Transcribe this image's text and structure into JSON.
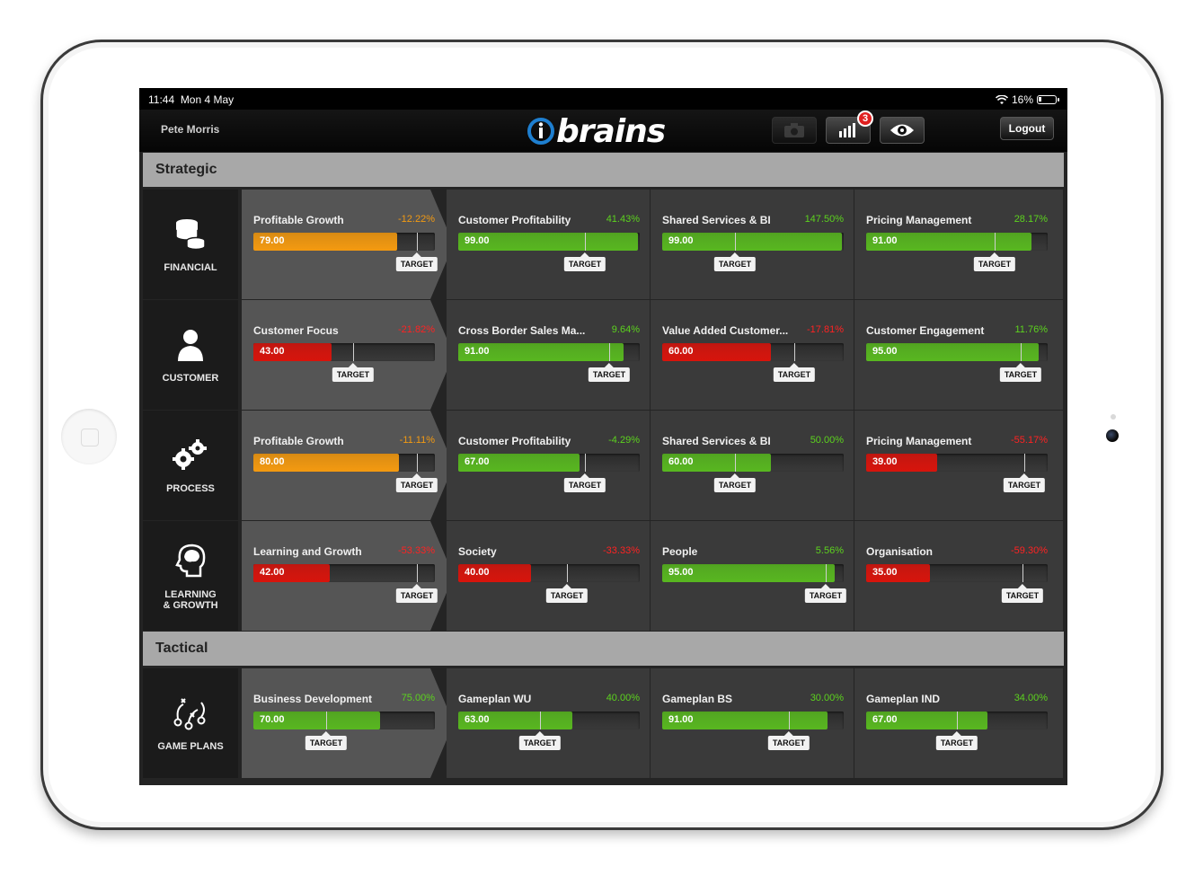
{
  "status": {
    "time": "11:44",
    "date": "Mon 4 May",
    "battery": "16%"
  },
  "header": {
    "user": "Pete Morris",
    "logo_text": "brains",
    "badge": "3",
    "logout": "Logout"
  },
  "colors": {
    "green": "#58b720",
    "red": "#d8140c",
    "orange": "#f49a10",
    "pct_green": "#5cd21e",
    "pct_red": "#ff2222",
    "pct_orange": "#f39a12"
  },
  "sections": [
    {
      "title": "Strategic",
      "rows": [
        {
          "category": "FINANCIAL",
          "icon": "database-icon",
          "tiles": [
            {
              "name": "Profitable Growth",
              "pct": "-12.22%",
              "value": "79.00",
              "color": "orange",
              "fill": 0.79,
              "target": 0.9,
              "target_label": "TARGET"
            },
            {
              "name": "Customer Profitability",
              "pct": "41.43%",
              "value": "99.00",
              "color": "green",
              "fill": 0.99,
              "target": 0.7,
              "target_label": "TARGET"
            },
            {
              "name": "Shared Services & BI",
              "pct": "147.50%",
              "value": "99.00",
              "color": "green",
              "fill": 0.99,
              "target": 0.4,
              "target_label": "TARGET"
            },
            {
              "name": "Pricing Management",
              "pct": "28.17%",
              "value": "91.00",
              "color": "green",
              "fill": 0.91,
              "target": 0.71,
              "target_label": "TARGET"
            }
          ]
        },
        {
          "category": "CUSTOMER",
          "icon": "person-icon",
          "tiles": [
            {
              "name": "Customer Focus",
              "pct": "-21.82%",
              "value": "43.00",
              "color": "red",
              "fill": 0.43,
              "target": 0.55,
              "target_label": "TARGET"
            },
            {
              "name": "Cross Border Sales Ma...",
              "pct": "9.64%",
              "value": "91.00",
              "color": "green",
              "fill": 0.91,
              "target": 0.83,
              "target_label": "TARGET"
            },
            {
              "name": "Value Added Customer...",
              "pct": "-17.81%",
              "value": "60.00",
              "color": "red",
              "fill": 0.6,
              "target": 0.73,
              "target_label": "TARGET"
            },
            {
              "name": "Customer Engagement",
              "pct": "11.76%",
              "value": "95.00",
              "color": "green",
              "fill": 0.95,
              "target": 0.85,
              "target_label": "TARGET"
            }
          ]
        },
        {
          "category": "PROCESS",
          "icon": "gears-icon",
          "tiles": [
            {
              "name": "Profitable Growth",
              "pct": "-11.11%",
              "value": "80.00",
              "color": "orange",
              "fill": 0.8,
              "target": 0.9,
              "target_label": "TARGET"
            },
            {
              "name": "Customer Profitability",
              "pct": "-4.29%",
              "value": "67.00",
              "color": "green",
              "fill": 0.67,
              "target": 0.7,
              "target_label": "TARGET"
            },
            {
              "name": "Shared Services & BI",
              "pct": "50.00%",
              "value": "60.00",
              "color": "green",
              "fill": 0.6,
              "target": 0.4,
              "target_label": "TARGET"
            },
            {
              "name": "Pricing Management",
              "pct": "-55.17%",
              "value": "39.00",
              "color": "red",
              "fill": 0.39,
              "target": 0.87,
              "target_label": "TARGET"
            }
          ]
        },
        {
          "category": "LEARNING\n& GROWTH",
          "icon": "head-icon",
          "tiles": [
            {
              "name": "Learning and Growth",
              "pct": "-53.33%",
              "value": "42.00",
              "color": "red",
              "fill": 0.42,
              "target": 0.9,
              "target_label": "TARGET"
            },
            {
              "name": "Society",
              "pct": "-33.33%",
              "value": "40.00",
              "color": "red",
              "fill": 0.4,
              "target": 0.6,
              "target_label": "TARGET"
            },
            {
              "name": "People",
              "pct": "5.56%",
              "value": "95.00",
              "color": "green",
              "fill": 0.95,
              "target": 0.9,
              "target_label": "TARGET"
            },
            {
              "name": "Organisation",
              "pct": "-59.30%",
              "value": "35.00",
              "color": "red",
              "fill": 0.35,
              "target": 0.86,
              "target_label": "TARGET"
            }
          ]
        }
      ]
    },
    {
      "title": "Tactical",
      "rows": [
        {
          "category": "GAME PLANS",
          "icon": "playbook-icon",
          "tiles": [
            {
              "name": "Business Development",
              "pct": "75.00%",
              "value": "70.00",
              "color": "green",
              "fill": 0.7,
              "target": 0.4,
              "target_label": "TARGET"
            },
            {
              "name": "Gameplan WU",
              "pct": "40.00%",
              "value": "63.00",
              "color": "green",
              "fill": 0.63,
              "target": 0.45,
              "target_label": "TARGET"
            },
            {
              "name": "Gameplan BS",
              "pct": "30.00%",
              "value": "91.00",
              "color": "green",
              "fill": 0.91,
              "target": 0.7,
              "target_label": "TARGET"
            },
            {
              "name": "Gameplan IND",
              "pct": "34.00%",
              "value": "67.00",
              "color": "green",
              "fill": 0.67,
              "target": 0.5,
              "target_label": "TARGET"
            }
          ]
        }
      ]
    }
  ]
}
